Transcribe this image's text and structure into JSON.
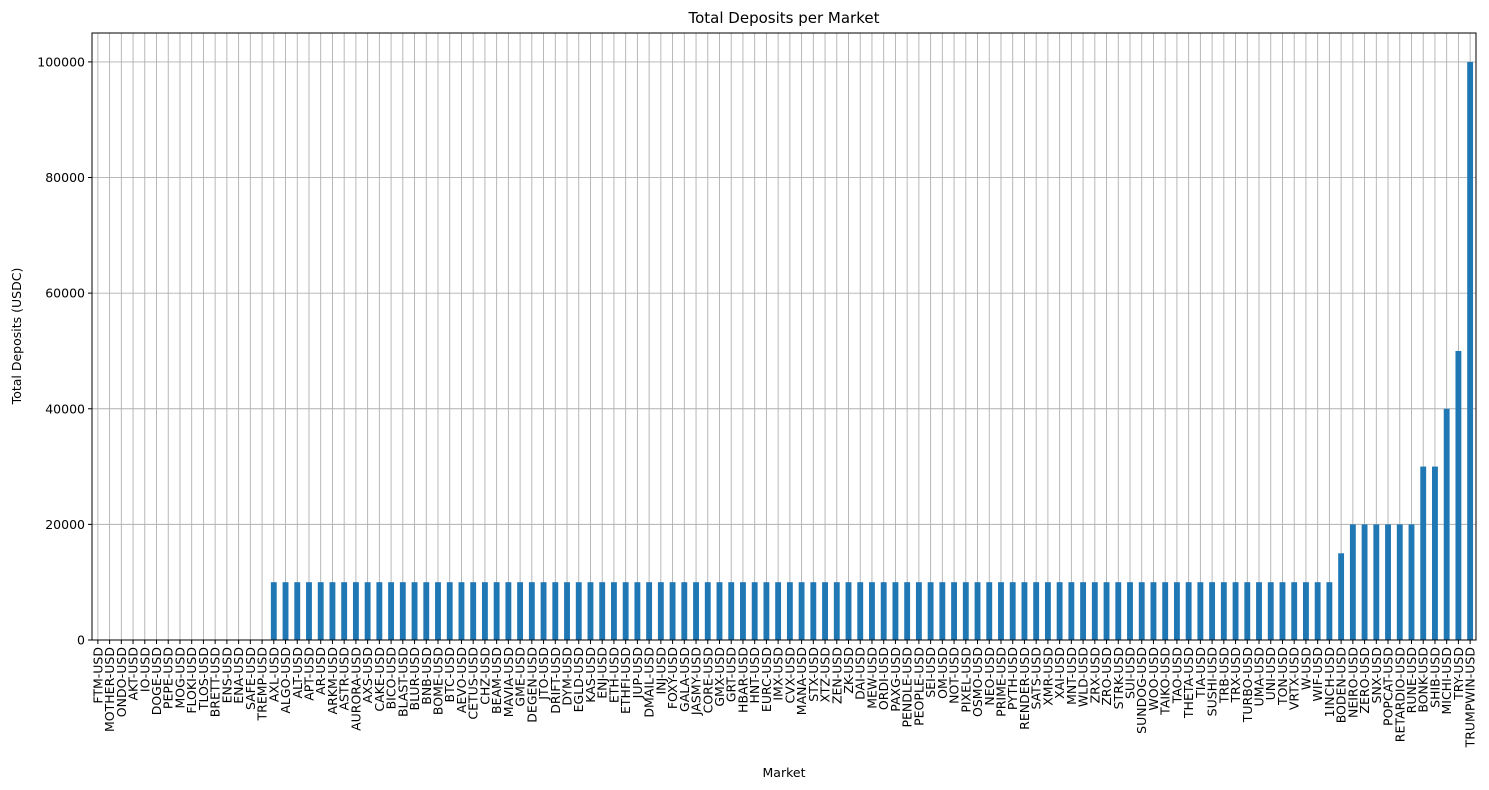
{
  "chart_data": {
    "type": "bar",
    "title": "Total Deposits per Market",
    "x_label": "Market",
    "y_label": "Total Deposits (USDC)",
    "categories": [
      "FTM-USD",
      "MOTHER-USD",
      "ONDO-USD",
      "AKT-USD",
      "IO-USD",
      "DOGE-USD",
      "PEPE-USD",
      "MOG-USD",
      "FLOKI-USD",
      "TLOS-USD",
      "BRETT-USD",
      "ENS-USD",
      "ENA-USD",
      "SAFE-USD",
      "TREMP-USD",
      "AXL-USD",
      "ALGO-USD",
      "ALT-USD",
      "APT-USD",
      "AR-USD",
      "ARKM-USD",
      "ASTR-USD",
      "AURORA-USD",
      "AXS-USD",
      "CAKE-USD",
      "BICO-USD",
      "BLAST-USD",
      "BLUR-USD",
      "BNB-USD",
      "BOME-USD",
      "BTC-USD",
      "AEVO-USD",
      "CETUS-USD",
      "CHZ-USD",
      "BEAM-USD",
      "MAVIA-USD",
      "GME-USD",
      "DEGEN-USD",
      "JTO-USD",
      "DRIFT-USD",
      "DYM-USD",
      "EGLD-USD",
      "KAS-USD",
      "ENJ-USD",
      "ETH-USD",
      "ETHFI-USD",
      "JUP-USD",
      "DMAIL-USD",
      "INJ-USD",
      "FOXY-USD",
      "GALA-USD",
      "JASMY-USD",
      "CORE-USD",
      "GMX-USD",
      "GRT-USD",
      "HBAR-USD",
      "HNT-USD",
      "EURC-USD",
      "IMX-USD",
      "CVX-USD",
      "MANA-USD",
      "STX-USD",
      "XTZ-USD",
      "ZEN-USD",
      "ZK-USD",
      "DAI-USD",
      "MEW-USD",
      "ORDI-USD",
      "PAXG-USD",
      "PENDLE-USD",
      "PEOPLE-USD",
      "SEI-USD",
      "OM-USD",
      "NOT-USD",
      "PIXEL-USD",
      "OSMO-USD",
      "NEO-USD",
      "PRIME-USD",
      "PYTH-USD",
      "RENDER-USD",
      "SATS-USD",
      "XMR-USD",
      "XAI-USD",
      "MNT-USD",
      "WLD-USD",
      "ZRX-USD",
      "ZRO-USD",
      "STRK-USD",
      "SUI-USD",
      "SUNDOG-USD",
      "WOO-USD",
      "TAIKO-USD",
      "TAO-USD",
      "THETA-USD",
      "TIA-USD",
      "SUSHI-USD",
      "TRB-USD",
      "TRX-USD",
      "TURBO-USD",
      "UMA-USD",
      "UNI-USD",
      "TON-USD",
      "VRTX-USD",
      "W-USD",
      "WIF-USD",
      "1INCH-USD",
      "BODEN-USD",
      "NEIRO-USD",
      "ZERO-USD",
      "SNX-USD",
      "POPCAT-USD",
      "RETARDIO-USD",
      "RUNE-USD",
      "BONK-USD",
      "SHIB-USD",
      "MICHI-USD",
      "TRY-USD",
      "TRUMPWIN-USD"
    ],
    "values": [
      0,
      0,
      0,
      0,
      0,
      0,
      0,
      0,
      0,
      0,
      0,
      0,
      0,
      0,
      0,
      10000,
      10000,
      10000,
      10000,
      10000,
      10000,
      10000,
      10000,
      10000,
      10000,
      10000,
      10000,
      10000,
      10000,
      10000,
      10000,
      10000,
      10000,
      10000,
      10000,
      10000,
      10000,
      10000,
      10000,
      10000,
      10000,
      10000,
      10000,
      10000,
      10000,
      10000,
      10000,
      10000,
      10000,
      10000,
      10000,
      10000,
      10000,
      10000,
      10000,
      10000,
      10000,
      10000,
      10000,
      10000,
      10000,
      10000,
      10000,
      10000,
      10000,
      10000,
      10000,
      10000,
      10000,
      10000,
      10000,
      10000,
      10000,
      10000,
      10000,
      10000,
      10000,
      10000,
      10000,
      10000,
      10000,
      10000,
      10000,
      10000,
      10000,
      10000,
      10000,
      10000,
      10000,
      10000,
      10000,
      10000,
      10000,
      10000,
      10000,
      10000,
      10000,
      10000,
      10000,
      10000,
      10000,
      10000,
      10000,
      10000,
      10000,
      10000,
      15000,
      20000,
      20000,
      20000,
      20000,
      20000,
      20000,
      30000,
      30000,
      40000,
      50000,
      100000
    ],
    "color": "#1f77b4",
    "ylim": [
      0,
      105000
    ],
    "yticks": [
      0,
      20000,
      40000,
      60000,
      80000,
      100000
    ],
    "grid": true
  }
}
